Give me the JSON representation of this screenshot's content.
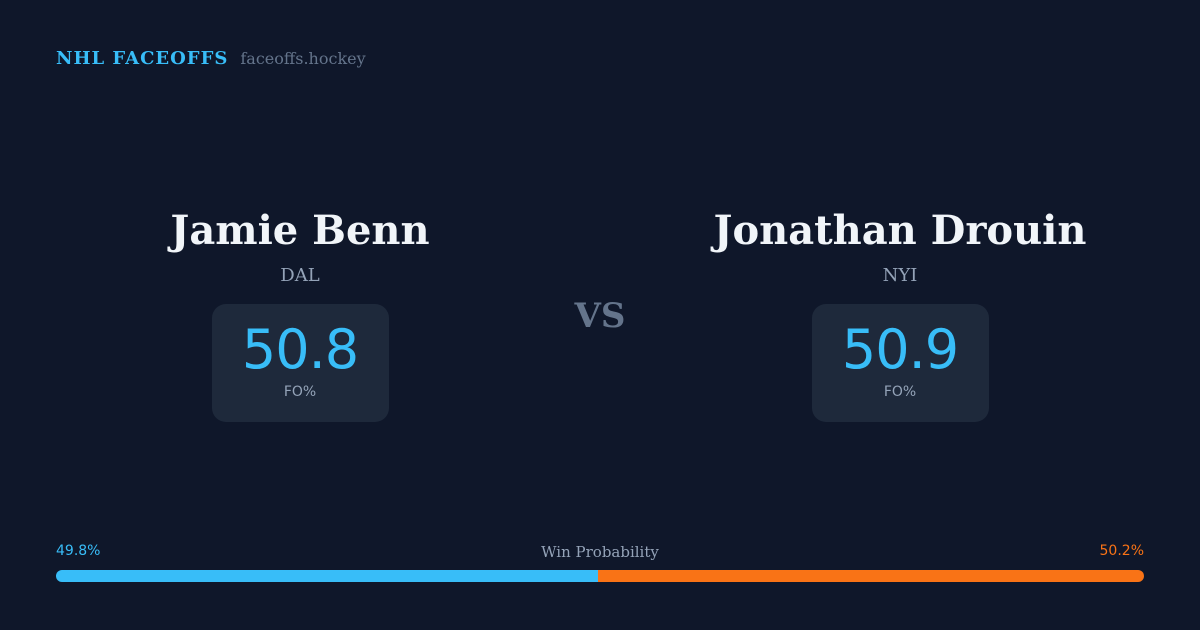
{
  "brand": {
    "title": "NHL FACEOFFS",
    "site": "faceoffs.hockey"
  },
  "players": [
    {
      "name": "Jamie Benn",
      "team": "DAL",
      "value": "50.8",
      "label": "FO%"
    },
    {
      "name": "Jonathan Drouin",
      "team": "NYI",
      "value": "50.9",
      "label": "FO%"
    }
  ],
  "vs": "VS",
  "probability": {
    "label": "Win Probability",
    "left_text": "49.8%",
    "right_text": "50.2%",
    "left_percent": 49.8,
    "colors": {
      "left": "#38bdf8",
      "right": "#f97316"
    }
  }
}
